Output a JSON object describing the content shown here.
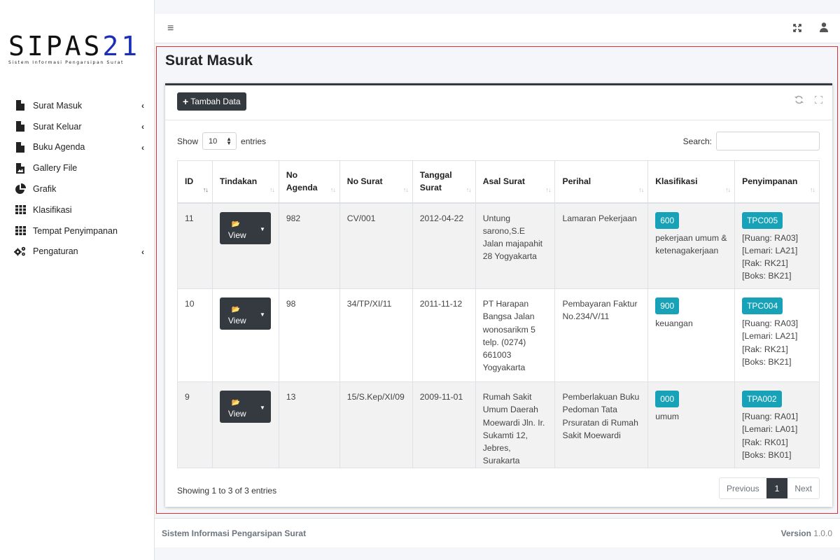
{
  "app": {
    "logo_main": "SIPAS",
    "logo_num": "21",
    "logo_sub": "Sistem Informasi Pengarsipan Surat"
  },
  "sidebar": {
    "items": [
      {
        "label": "Surat Masuk",
        "icon": "file-icon",
        "has_chevron": true
      },
      {
        "label": "Surat Keluar",
        "icon": "file-icon",
        "has_chevron": true
      },
      {
        "label": "Buku Agenda",
        "icon": "file-icon",
        "has_chevron": true
      },
      {
        "label": "Gallery File",
        "icon": "file-image-icon",
        "has_chevron": false
      },
      {
        "label": "Grafik",
        "icon": "pie-chart-icon",
        "has_chevron": false
      },
      {
        "label": "Klasifikasi",
        "icon": "grid-icon",
        "has_chevron": false
      },
      {
        "label": "Tempat Penyimpanan",
        "icon": "grid-icon",
        "has_chevron": false
      },
      {
        "label": "Pengaturan",
        "icon": "cogs-icon",
        "has_chevron": true
      }
    ]
  },
  "page": {
    "title": "Surat Masuk",
    "add_button": "Tambah Data",
    "show_label": "Show",
    "entries_value": "10",
    "entries_label": "entries",
    "search_label": "Search:",
    "search_value": ""
  },
  "table": {
    "columns": [
      "ID",
      "Tindakan",
      "No Agenda",
      "No Surat",
      "Tanggal Surat",
      "Asal Surat",
      "Perihal",
      "Klasifikasi",
      "Penyimpanan"
    ],
    "view_label": "View",
    "rows": [
      {
        "id": "11",
        "no_agenda": "982",
        "no_surat": "CV/001",
        "tanggal": "2012-04-22",
        "asal": "Untung sarono,S.E Jalan majapahit 28 Yogyakarta",
        "perihal": "Lamaran Pekerjaan",
        "klas_code": "600",
        "klas_text": "pekerjaan umum & ketenagakerjaan",
        "simpan_code": "TPC005",
        "ruang": "[Ruang: RA03]",
        "lemari": "[Lemari: LA21]",
        "rak": "[Rak: RK21]",
        "boks": "[Boks: BK21]"
      },
      {
        "id": "10",
        "no_agenda": "98",
        "no_surat": "34/TP/XI/11",
        "tanggal": "2011-11-12",
        "asal": "PT Harapan Bangsa Jalan wonosarikm 5 telp. (0274) 661003 Yogyakarta",
        "perihal": "Pembayaran Faktur No.234/V/11",
        "klas_code": "900",
        "klas_text": "keuangan",
        "simpan_code": "TPC004",
        "ruang": "[Ruang: RA03]",
        "lemari": "[Lemari: LA21]",
        "rak": "[Rak: RK21]",
        "boks": "[Boks: BK21]"
      },
      {
        "id": "9",
        "no_agenda": "13",
        "no_surat": "15/S.Kep/XI/09",
        "tanggal": "2009-11-01",
        "asal": "Rumah Sakit Umum Daerah Moewardi Jln. Ir. Sukamti 12, Jebres, Surakarta",
        "perihal": "Pemberlakuan Buku Pedoman Tata Prsuratan di Rumah Sakit Moewardi",
        "klas_code": "000",
        "klas_text": "umum",
        "simpan_code": "TPA002",
        "ruang": "[Ruang: RA01]",
        "lemari": "[Lemari: LA01]",
        "rak": "[Rak: RK01]",
        "boks": "[Boks: BK01]"
      }
    ]
  },
  "pager": {
    "info": "Showing 1 to 3 of 3 entries",
    "previous": "Previous",
    "current": "1",
    "next": "Next"
  },
  "footer": {
    "left": "Sistem Informasi Pengarsipan Surat",
    "version_label": "Version",
    "version_number": "1.0.0"
  },
  "colors": {
    "dark": "#343a40",
    "badge": "#17a2b8",
    "frame": "#e03131",
    "logo_blue": "#1a2fb8"
  }
}
